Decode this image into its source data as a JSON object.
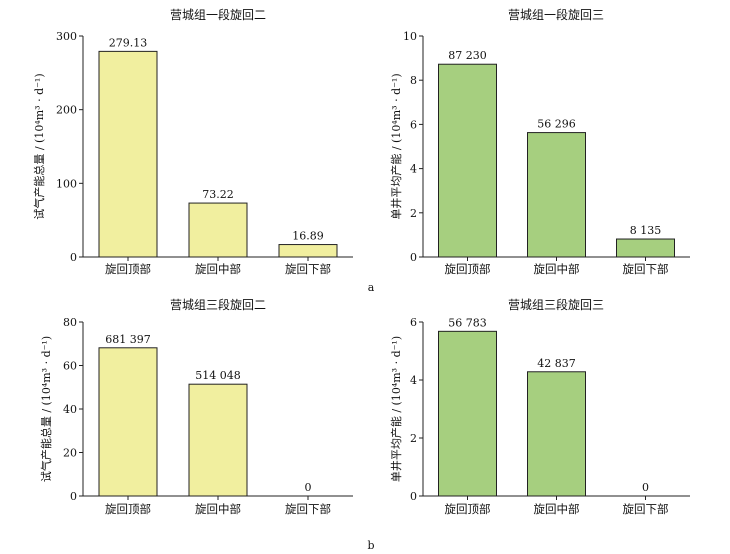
{
  "figure": {
    "row_labels": [
      "a",
      "b"
    ]
  },
  "chart_data": [
    {
      "type": "bar",
      "title": "营城组一段旋回二",
      "ylabel": "试气产能总量 / (10⁴m³ · d⁻¹)",
      "categories": [
        "旋回顶部",
        "旋回中部",
        "旋回下部"
      ],
      "values": [
        279.13,
        73.22,
        16.89
      ],
      "data_labels": [
        "279.13",
        "73.22",
        "16.89"
      ],
      "ylim": [
        0,
        300
      ],
      "yticks": [
        0,
        100,
        200,
        300
      ],
      "bar_color": "#f1ef9f"
    },
    {
      "type": "bar",
      "title": "营城组一段旋回三",
      "ylabel": "单井平均产能 / (10⁴m³ · d⁻¹)",
      "categories": [
        "旋回顶部",
        "旋回中部",
        "旋回下部"
      ],
      "values": [
        8.723,
        5.6296,
        0.8135
      ],
      "data_labels": [
        "87 230",
        "56 296",
        "8 135"
      ],
      "ylim": [
        0,
        10
      ],
      "yticks": [
        0,
        2,
        4,
        6,
        8,
        10
      ],
      "bar_color": "#a6cf7f"
    },
    {
      "type": "bar",
      "title": "营城组三段旋回二",
      "ylabel": "试气产能总量 / (10⁴m³ · d⁻¹)",
      "categories": [
        "旋回顶部",
        "旋回中部",
        "旋回下部"
      ],
      "values": [
        68.1397,
        51.4048,
        0
      ],
      "data_labels": [
        "681 397",
        "514 048",
        "0"
      ],
      "ylim": [
        0,
        80
      ],
      "yticks": [
        0,
        20,
        40,
        60,
        80
      ],
      "bar_color": "#f1ef9f"
    },
    {
      "type": "bar",
      "title": "营城组三段旋回三",
      "ylabel": "单井平均产能 / (10⁴m³ · d⁻¹)",
      "categories": [
        "旋回顶部",
        "旋回中部",
        "旋回下部"
      ],
      "values": [
        5.6783,
        4.2837,
        0
      ],
      "data_labels": [
        "56 783",
        "42 837",
        "0"
      ],
      "ylim": [
        0,
        6
      ],
      "yticks": [
        0,
        2,
        4,
        6
      ],
      "bar_color": "#a6cf7f"
    }
  ]
}
